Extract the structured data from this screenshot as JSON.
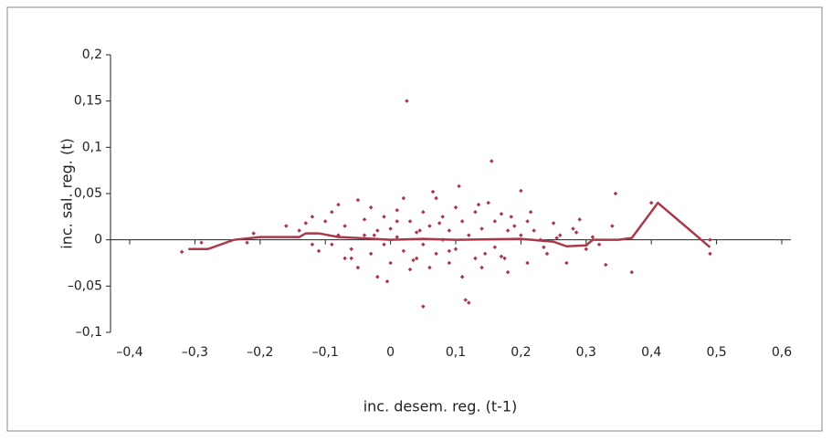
{
  "chart_data": {
    "type": "scatter",
    "x_label": "inc. desem. reg. (t-1)",
    "y_label": "inc. sal. reg. (t)",
    "xlim": [
      -0.4,
      0.6
    ],
    "ylim": [
      -0.1,
      0.2
    ],
    "xticks": [
      {
        "value": -0.4,
        "label": "–0,4"
      },
      {
        "value": -0.3,
        "label": "–0,3"
      },
      {
        "value": -0.2,
        "label": "–0,2"
      },
      {
        "value": -0.1,
        "label": "–0,1"
      },
      0,
      {
        "value": 0.1,
        "label": "0,1"
      },
      {
        "value": 0.2,
        "label": "0,2"
      },
      {
        "value": 0.3,
        "label": "0,3"
      },
      {
        "value": 0.4,
        "label": "0,4"
      },
      {
        "value": 0.5,
        "label": "0,5"
      },
      {
        "value": 0.6,
        "label": "0,6"
      }
    ],
    "yticks": [
      {
        "value": -0.1,
        "label": "–0,1"
      },
      {
        "value": -0.05,
        "label": "–0,05"
      },
      0,
      {
        "value": 0.05,
        "label": "0,05"
      },
      {
        "value": 0.1,
        "label": "0,1"
      },
      {
        "value": 0.15,
        "label": "0,15"
      },
      {
        "value": 0.2,
        "label": "0,2"
      }
    ],
    "color": "#a8384a",
    "points": {
      "x": [
        0.025,
        0.155,
        0.105,
        0.2,
        0.345,
        0.065,
        0.05,
        0.12,
        0.115,
        0.37,
        0.49,
        -0.32,
        -0.29,
        -0.22,
        -0.21,
        -0.005,
        0.4,
        0.49,
        0.34,
        0.33,
        -0.16,
        -0.14,
        -0.13,
        -0.12,
        -0.11,
        -0.1,
        -0.09,
        -0.09,
        -0.08,
        -0.07,
        -0.07,
        -0.06,
        -0.05,
        -0.05,
        -0.04,
        -0.04,
        -0.03,
        -0.03,
        -0.02,
        -0.02,
        -0.01,
        -0.01,
        0,
        0,
        0.01,
        0.01,
        0.02,
        0.02,
        0.03,
        0.03,
        0.04,
        0.04,
        0.05,
        0.05,
        0.06,
        0.06,
        0.07,
        0.07,
        0.08,
        0.08,
        0.09,
        0.09,
        0.1,
        0.1,
        0.11,
        0.11,
        0.12,
        0.13,
        0.13,
        0.14,
        0.14,
        0.15,
        0.16,
        0.16,
        0.17,
        0.17,
        0.18,
        0.18,
        0.19,
        0.2,
        0.21,
        0.21,
        0.22,
        0.23,
        0.24,
        0.25,
        0.26,
        0.27,
        0.28,
        0.29,
        0.3,
        0.31,
        0.32,
        -0.12,
        -0.06,
        0.01,
        0.045,
        0.09,
        0.135,
        0.175,
        0.215,
        0.255,
        0.285,
        -0.08,
        -0.025,
        0.035,
        0.075,
        0.145,
        0.185,
        0.235
      ],
      "y": [
        0.15,
        0.085,
        0.058,
        0.053,
        0.05,
        0.052,
        -0.072,
        -0.068,
        -0.065,
        -0.035,
        -0.015,
        -0.013,
        -0.003,
        -0.003,
        0.007,
        -0.045,
        0.04,
        0.0,
        0.015,
        -0.027,
        0.015,
        0.01,
        0.018,
        0.025,
        -0.012,
        0.02,
        0.03,
        -0.005,
        0.038,
        0.015,
        -0.02,
        -0.01,
        0.043,
        -0.03,
        0.022,
        0.005,
        -0.015,
        0.035,
        0.01,
        -0.04,
        0.025,
        -0.005,
        0.012,
        -0.025,
        0.032,
        0.003,
        -0.012,
        0.045,
        0.02,
        -0.032,
        0.008,
        -0.02,
        0.03,
        -0.005,
        -0.03,
        0.015,
        0.045,
        -0.015,
        0.025,
        0.0,
        -0.025,
        0.01,
        0.035,
        -0.01,
        0.02,
        -0.04,
        0.005,
        0.03,
        -0.02,
        0.012,
        -0.03,
        0.04,
        0.02,
        -0.008,
        0.028,
        -0.018,
        0.01,
        -0.035,
        0.015,
        0.005,
        -0.025,
        0.02,
        0.01,
        0.0,
        -0.015,
        0.018,
        0.005,
        -0.025,
        0.012,
        0.022,
        -0.01,
        0.003,
        -0.005,
        -0.005,
        -0.02,
        0.02,
        0.01,
        -0.012,
        0.038,
        -0.02,
        0.03,
        0.002,
        0.008,
        0.005,
        0.005,
        -0.022,
        0.018,
        -0.015,
        0.025,
        -0.008
      ]
    },
    "line": {
      "x": [
        -0.31,
        -0.28,
        -0.24,
        -0.2,
        -0.14,
        -0.13,
        -0.11,
        -0.08,
        -0.05,
        0,
        0.05,
        0.1,
        0.2,
        0.25,
        0.27,
        0.3,
        0.31,
        0.35,
        0.37,
        0.41,
        0.49
      ],
      "y": [
        -0.01,
        -0.01,
        0,
        0.003,
        0.003,
        0.007,
        0.007,
        0.003,
        0.002,
        0,
        0.001,
        0,
        0.001,
        -0.002,
        -0.007,
        -0.006,
        0,
        0,
        0.002,
        0.04,
        -0.008
      ]
    }
  }
}
